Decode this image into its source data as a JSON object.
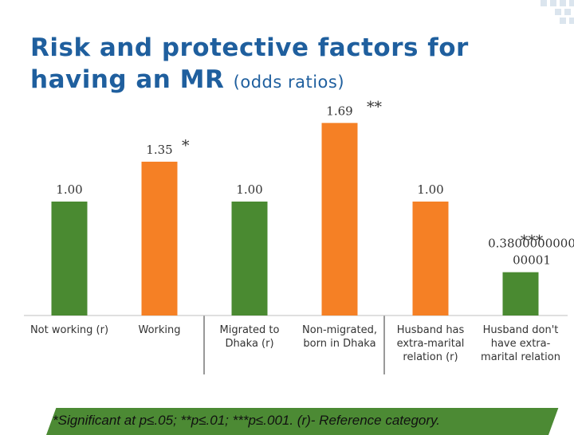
{
  "slide": {
    "title_main": "Risk and protective factors for having an MR",
    "title_sub": "(odds ratios)",
    "footnote": "*Significant at p≤.05; **p≤.01; ***p≤.001. (r)- Reference category.",
    "accent_color": "#1f5f9e",
    "footer_color": "#4c8a34"
  },
  "chart_data": {
    "type": "bar",
    "title": "",
    "xlabel": "",
    "ylabel": "",
    "ylim": [
      0,
      1.8
    ],
    "grid": false,
    "legend": "none",
    "categories": [
      "Not working  (r)",
      "Working",
      "Migrated to Dhaka (r)",
      "Non-migrated, born in Dhaka",
      "Husband has extra-marital relation (r)",
      "Husband don't have extra-marital relation"
    ],
    "category_lines": [
      [
        "Not working  (r)"
      ],
      [
        "Working"
      ],
      [
        "Migrated to",
        "Dhaka (r)"
      ],
      [
        "Non-migrated,",
        "born in Dhaka"
      ],
      [
        "Husband has",
        "extra-marital",
        "relation (r)"
      ],
      [
        "Husband don't",
        "have extra-",
        "marital relation"
      ]
    ],
    "values": [
      1.0,
      1.35,
      1.0,
      1.69,
      1.0,
      0.38
    ],
    "data_labels": [
      "1.00",
      "1.35",
      "1.00",
      "1.69",
      "1.00",
      "0.3800000000 00001"
    ],
    "data_label_lines": [
      [
        "1.00"
      ],
      [
        "1.35"
      ],
      [
        "1.00"
      ],
      [
        "1.69"
      ],
      [
        "1.00"
      ],
      [
        "0.3800000000",
        "00001"
      ]
    ],
    "significance": [
      "",
      "*",
      "",
      "**",
      "",
      "***"
    ],
    "bar_colors": [
      "#4a8a31",
      "#f58025",
      "#4a8a31",
      "#f58025",
      "#f58025",
      "#4a8a31"
    ]
  }
}
